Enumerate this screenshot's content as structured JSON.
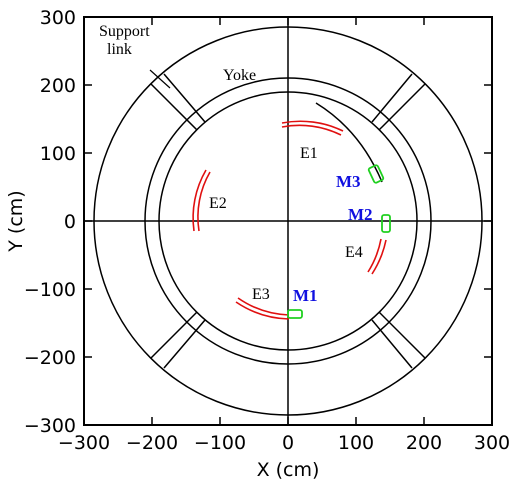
{
  "axes": {
    "x_label": "X (cm)",
    "y_label": "Y (cm)",
    "x_ticks": [
      -300,
      -200,
      -100,
      0,
      100,
      200,
      300
    ],
    "y_ticks": [
      -300,
      -200,
      -100,
      0,
      100,
      200,
      300
    ],
    "x_tick_labels": [
      "−300",
      "−200",
      "−100",
      "0",
      "100",
      "200",
      "300"
    ],
    "y_tick_labels": [
      "−300",
      "−200",
      "−100",
      "0",
      "100",
      "200",
      "300"
    ],
    "xlim": [
      -300,
      300
    ],
    "ylim": [
      -300,
      300
    ]
  },
  "annotations": {
    "support_link_line1": "Support",
    "support_link_line2": "link",
    "yoke": "Yoke",
    "e1": "E1",
    "e2": "E2",
    "e3": "E3",
    "e4": "E4",
    "m1": "M1",
    "m2": "M2",
    "m3": "M3"
  },
  "geometry_cm": {
    "outer_radius": 285,
    "middle_radius": 210,
    "inner_radius": 190,
    "support_link_angles_deg": [
      45,
      135,
      225,
      315
    ]
  },
  "colors": {
    "detector_arc": "#e01010",
    "marker_box": "#20d020",
    "marker_text": "#1010e0",
    "lines": "#000000"
  }
}
